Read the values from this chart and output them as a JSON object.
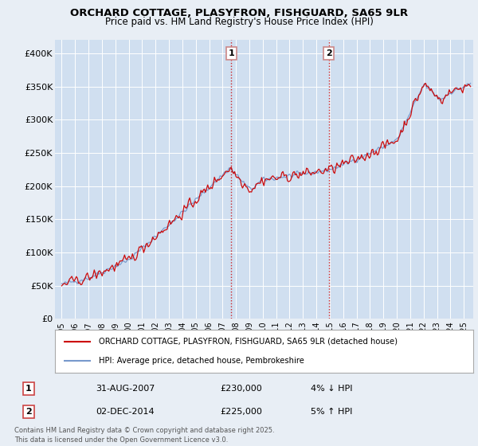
{
  "title_line1": "ORCHARD COTTAGE, PLASYFRON, FISHGUARD, SA65 9LR",
  "title_line2": "Price paid vs. HM Land Registry's House Price Index (HPI)",
  "background_color": "#e8eef5",
  "plot_bg_color": "#d0dff0",
  "grid_color": "#ffffff",
  "red_line_color": "#cc0000",
  "blue_line_color": "#7799cc",
  "marker1_x": 2007.66,
  "marker2_x": 2014.92,
  "legend_red": "ORCHARD COTTAGE, PLASYFRON, FISHGUARD, SA65 9LR (detached house)",
  "legend_blue": "HPI: Average price, detached house, Pembrokeshire",
  "annotation1": [
    "1",
    "31-AUG-2007",
    "£230,000",
    "4% ↓ HPI"
  ],
  "annotation2": [
    "2",
    "02-DEC-2014",
    "£225,000",
    "5% ↑ HPI"
  ],
  "footer": "Contains HM Land Registry data © Crown copyright and database right 2025.\nThis data is licensed under the Open Government Licence v3.0.",
  "ylim": [
    0,
    420000
  ],
  "xlim_start": 1994.5,
  "xlim_end": 2025.7,
  "yticks": [
    0,
    50000,
    100000,
    150000,
    200000,
    250000,
    300000,
    350000,
    400000
  ],
  "ytick_labels": [
    "£0",
    "£50K",
    "£100K",
    "£150K",
    "£200K",
    "£250K",
    "£300K",
    "£350K",
    "£400K"
  ],
  "xticks": [
    1995,
    1996,
    1997,
    1998,
    1999,
    2000,
    2001,
    2002,
    2003,
    2004,
    2005,
    2006,
    2007,
    2008,
    2009,
    2010,
    2011,
    2012,
    2013,
    2014,
    2015,
    2016,
    2017,
    2018,
    2019,
    2020,
    2021,
    2022,
    2023,
    2024,
    2025
  ]
}
